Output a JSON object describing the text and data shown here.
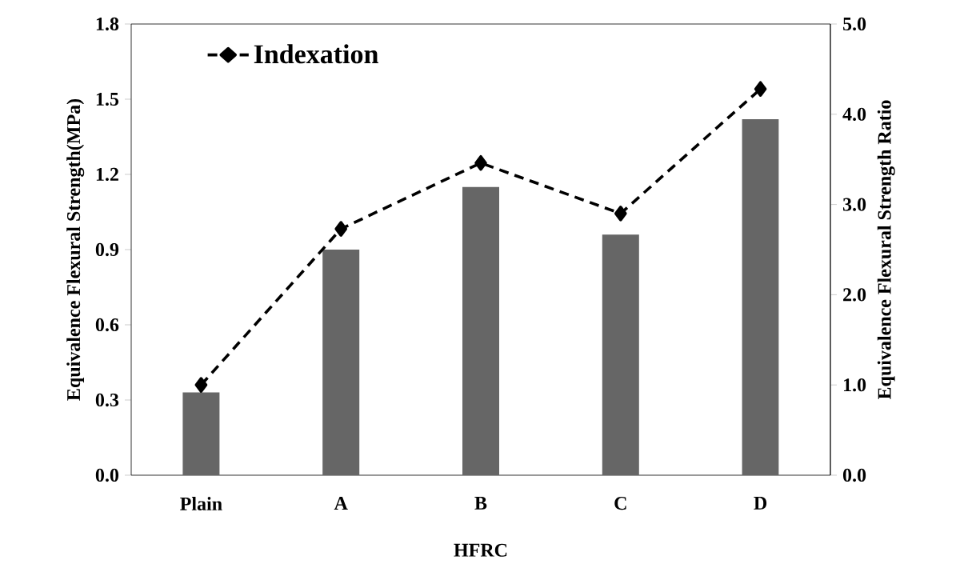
{
  "chart_data": {
    "type": "bar",
    "xlabel": "HFRC",
    "ylabel": "Equivalence Flexural Strength(MPa)",
    "y2label": "Equivalence Flexural Strength Ratio",
    "categories": [
      "Plain",
      "A",
      "B",
      "C",
      "D"
    ],
    "series": [
      {
        "color": "#666666",
        "values": [
          0.33,
          0.9,
          1.15,
          0.96,
          1.42
        ]
      },
      {
        "name": "Indexation",
        "type": "line",
        "axis": "y2",
        "color": "#000000",
        "marker": "diamond",
        "line_style": "dashed",
        "values": [
          1.0,
          2.73,
          3.46,
          2.9,
          4.28
        ]
      }
    ],
    "ylim": [
      0,
      1.8
    ],
    "yticks": [
      {
        "value": 0,
        "label": "0.0"
      },
      0.3,
      0.6,
      0.9,
      1.2,
      1.5,
      1.8
    ],
    "y2lim": [
      0,
      5
    ],
    "y2ticks": [
      {
        "value": 0,
        "label": "0.0"
      },
      {
        "value": 1,
        "label": "1.0"
      },
      {
        "value": 2,
        "label": "2.0"
      },
      {
        "value": 3,
        "label": "3.0"
      },
      {
        "value": 4,
        "label": "4.0"
      },
      {
        "value": 5,
        "label": "5.0"
      }
    ],
    "legend": "top left"
  }
}
